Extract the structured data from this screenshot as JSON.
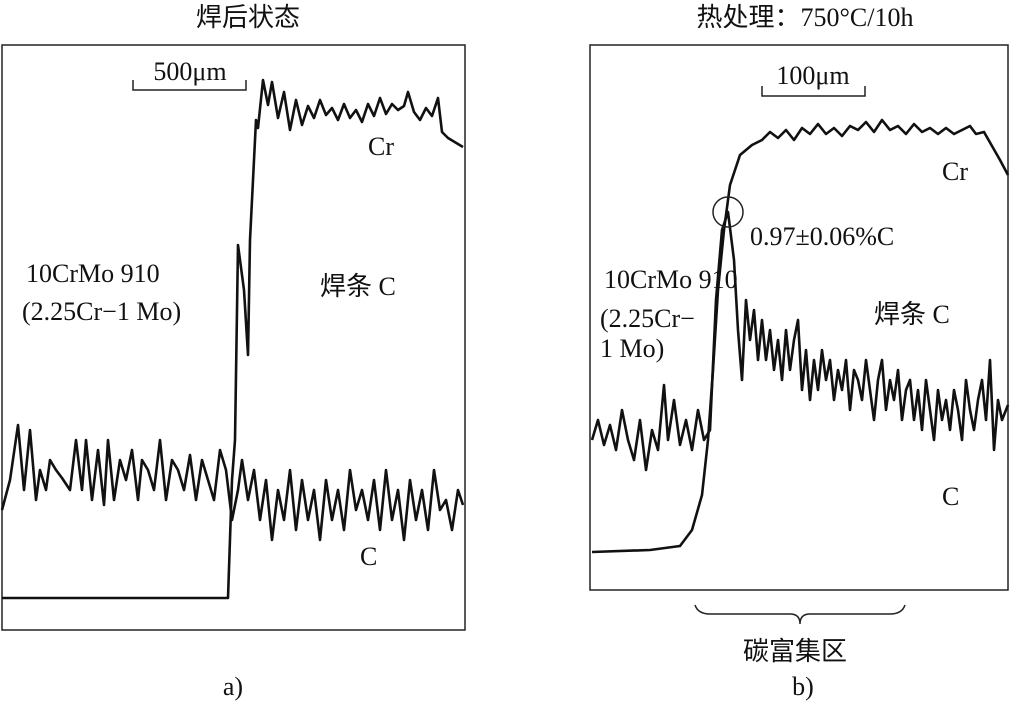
{
  "panels": [
    {
      "title": "焊后状态",
      "scale_bar": "500μm",
      "labels": [
        "Cr",
        "10CrMo 910",
        "(2.25Cr−1 Mo)",
        "焊条 C",
        "C"
      ],
      "caption": "a)"
    },
    {
      "title": "热处理：750°C/10h",
      "scale_bar": "100μm",
      "labels": [
        "Cr",
        "0.97±0.06%C",
        "10CrMo 910",
        "(2.25Cr−",
        "1 Mo)",
        "焊条 C",
        "C"
      ],
      "region": "碳富集区",
      "caption": "b)"
    }
  ]
}
